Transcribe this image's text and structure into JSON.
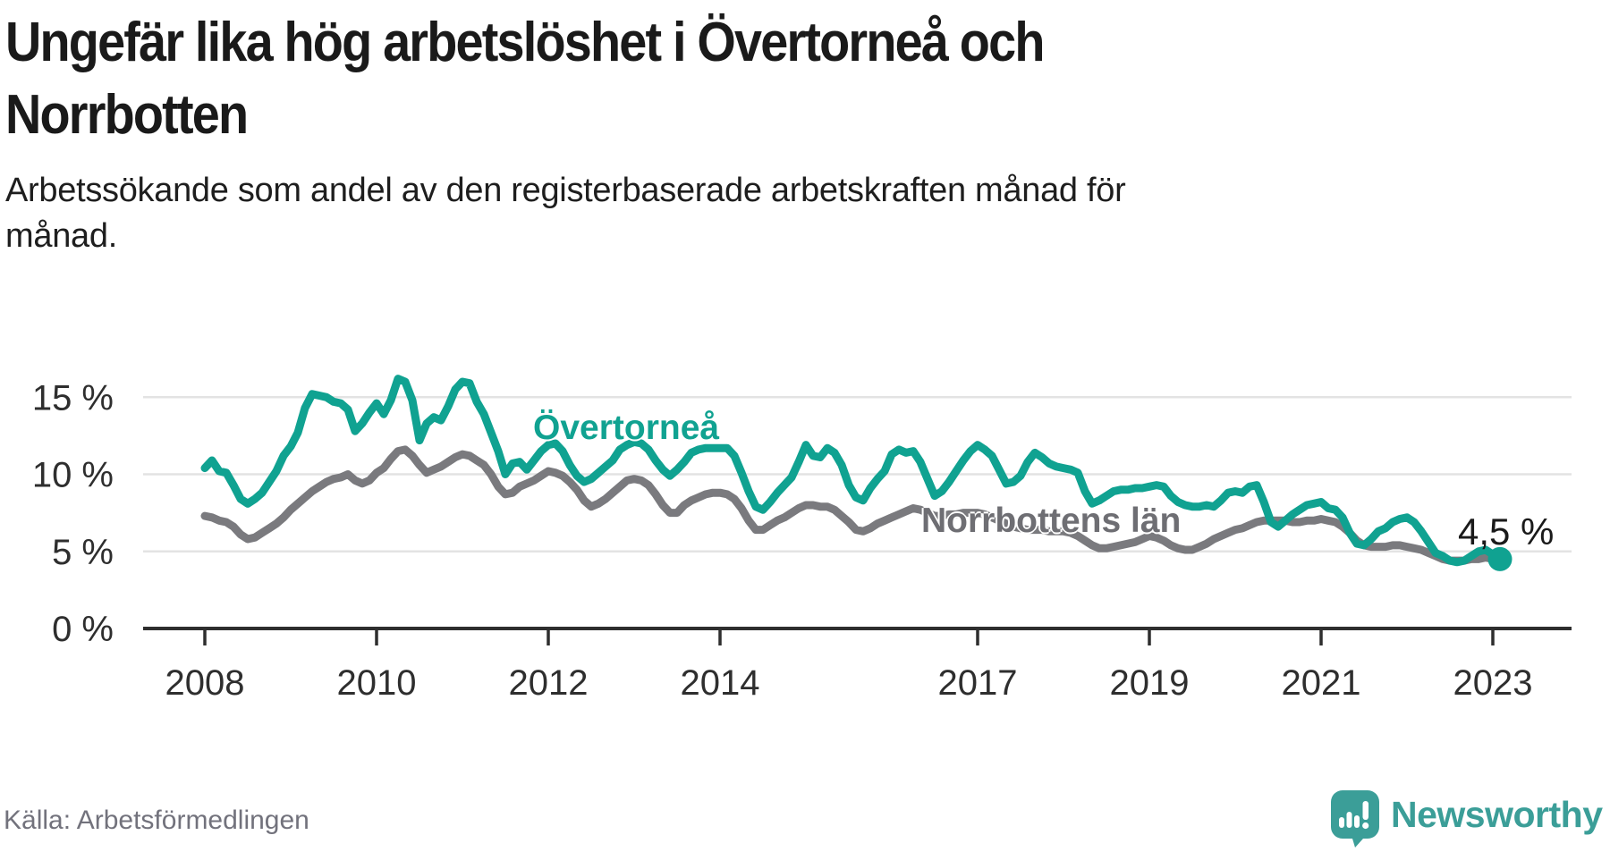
{
  "header": {
    "title": "Ungefär lika hög arbetslöshet i Övertorneå och\nNorrbotten",
    "subtitle": "Arbetssökande som andel av den registerbaserade arbetskraften månad för\nmånad."
  },
  "footer": {
    "source": "Källa: Arbetsförmedlingen",
    "brand": "Newsworthy"
  },
  "colors": {
    "overtornea": "#10a291",
    "norrbotten_line": "#7a7a7e",
    "norrbotten_label": "#6e6e73",
    "grid": "#e3e3e3",
    "axis": "#2e2e2e",
    "annotation_text": "#1a1a1a",
    "brand_teal": "#3b9e98"
  },
  "chart_data": {
    "type": "line",
    "title": "Ungefär lika hög arbetslöshet i Övertorneå och Norrbotten",
    "subtitle": "Arbetssökande som andel av den registerbaserade arbetskraften månad för månad.",
    "unit": "%",
    "frequency": "monthly",
    "x_start": "2008-01",
    "x_end": "2023-02",
    "x_axis": {
      "tick_years": [
        2008,
        2010,
        2012,
        2014,
        2017,
        2019,
        2021,
        2023
      ],
      "tick_labels": [
        "2008",
        "2010",
        "2012",
        "2014",
        "2017",
        "2019",
        "2021",
        "2023"
      ]
    },
    "y_axis": {
      "tick_values": [
        0,
        5,
        10,
        15
      ],
      "tick_labels": [
        "0 %",
        "5 %",
        "10 %",
        "15 %"
      ],
      "range": [
        0,
        16.8
      ],
      "grid": true
    },
    "legend_position": "inline-labels",
    "annotation": {
      "text": "4,5 %",
      "series": "Övertorneå",
      "point": "last",
      "value": 4.5
    },
    "series": [
      {
        "name": "Övertorneå",
        "color": "#10a291",
        "values": [
          10.4,
          10.9,
          10.2,
          10.1,
          9.3,
          8.4,
          8.1,
          8.4,
          8.8,
          9.5,
          10.2,
          11.2,
          11.8,
          12.7,
          14.3,
          15.2,
          15.1,
          15.0,
          14.7,
          14.6,
          14.2,
          12.8,
          13.3,
          14.0,
          14.6,
          13.9,
          14.8,
          16.2,
          16.0,
          14.8,
          12.2,
          13.3,
          13.7,
          13.5,
          14.4,
          15.5,
          16.0,
          15.9,
          14.7,
          13.9,
          12.7,
          11.5,
          10.0,
          10.7,
          10.8,
          10.3,
          10.9,
          11.5,
          11.9,
          12.0,
          11.5,
          10.6,
          9.9,
          9.5,
          9.7,
          10.1,
          10.5,
          10.9,
          11.6,
          11.9,
          12.1,
          12.0,
          11.6,
          10.9,
          10.3,
          9.9,
          10.3,
          10.8,
          11.4,
          11.6,
          11.7,
          11.7,
          11.7,
          11.7,
          11.2,
          10.1,
          8.9,
          7.9,
          7.7,
          8.2,
          8.8,
          9.3,
          9.8,
          10.8,
          11.9,
          11.2,
          11.1,
          11.7,
          11.4,
          10.6,
          9.3,
          8.5,
          8.3,
          9.1,
          9.7,
          10.2,
          11.3,
          11.6,
          11.4,
          11.5,
          10.8,
          9.7,
          8.6,
          8.9,
          9.5,
          10.2,
          10.9,
          11.5,
          11.9,
          11.6,
          11.2,
          10.3,
          9.4,
          9.5,
          9.9,
          10.8,
          11.4,
          11.1,
          10.7,
          10.5,
          10.4,
          10.3,
          10.1,
          8.9,
          8.1,
          8.3,
          8.6,
          8.9,
          9.0,
          9.0,
          9.1,
          9.1,
          9.2,
          9.3,
          9.2,
          8.6,
          8.2,
          8.0,
          7.9,
          7.9,
          8.0,
          7.9,
          8.3,
          8.8,
          8.9,
          8.8,
          9.2,
          9.3,
          8.2,
          6.9,
          6.6,
          7.0,
          7.4,
          7.7,
          8.0,
          8.1,
          8.2,
          7.8,
          7.7,
          7.2,
          6.2,
          5.5,
          5.4,
          5.8,
          6.3,
          6.5,
          6.9,
          7.1,
          7.2,
          6.9,
          6.3,
          5.6,
          4.9,
          4.7,
          4.4,
          4.3,
          4.4,
          4.7,
          5.0,
          5.1,
          4.8,
          4.5
        ]
      },
      {
        "name": "Norrbottens län",
        "color": "#7a7a7e",
        "values": [
          7.3,
          7.2,
          7.0,
          6.9,
          6.6,
          6.1,
          5.8,
          5.9,
          6.2,
          6.5,
          6.8,
          7.2,
          7.7,
          8.1,
          8.5,
          8.9,
          9.2,
          9.5,
          9.7,
          9.8,
          10.0,
          9.6,
          9.4,
          9.6,
          10.1,
          10.4,
          11.0,
          11.5,
          11.6,
          11.2,
          10.6,
          10.1,
          10.3,
          10.5,
          10.8,
          11.1,
          11.3,
          11.2,
          10.9,
          10.6,
          10.0,
          9.2,
          8.7,
          8.8,
          9.2,
          9.4,
          9.6,
          9.9,
          10.2,
          10.1,
          9.9,
          9.5,
          9.0,
          8.3,
          7.9,
          8.1,
          8.4,
          8.8,
          9.2,
          9.6,
          9.7,
          9.6,
          9.3,
          8.7,
          8.0,
          7.5,
          7.5,
          8.0,
          8.3,
          8.5,
          8.7,
          8.8,
          8.8,
          8.7,
          8.4,
          7.8,
          7.0,
          6.4,
          6.4,
          6.7,
          7.0,
          7.2,
          7.5,
          7.8,
          8.0,
          8.0,
          7.9,
          7.9,
          7.7,
          7.3,
          6.9,
          6.4,
          6.3,
          6.5,
          6.8,
          7.0,
          7.2,
          7.4,
          7.6,
          7.8,
          7.7,
          7.5,
          7.3,
          7.3,
          7.4,
          7.4,
          7.5,
          7.5,
          7.5,
          7.4,
          7.2,
          7.0,
          6.8,
          6.6,
          6.5,
          6.4,
          6.4,
          6.4,
          6.3,
          6.3,
          6.3,
          6.2,
          6.0,
          5.7,
          5.4,
          5.2,
          5.2,
          5.3,
          5.4,
          5.5,
          5.6,
          5.8,
          6.0,
          5.9,
          5.7,
          5.4,
          5.2,
          5.1,
          5.1,
          5.3,
          5.5,
          5.8,
          6.0,
          6.2,
          6.4,
          6.5,
          6.7,
          6.9,
          7.0,
          7.0,
          7.0,
          7.0,
          6.9,
          6.9,
          7.0,
          7.0,
          7.1,
          7.0,
          6.9,
          6.6,
          6.2,
          5.7,
          5.4,
          5.3,
          5.3,
          5.3,
          5.4,
          5.4,
          5.3,
          5.2,
          5.1,
          4.9,
          4.7,
          4.5,
          4.4,
          4.4,
          4.4,
          4.5,
          4.5,
          4.6,
          4.5,
          4.5
        ]
      }
    ]
  }
}
